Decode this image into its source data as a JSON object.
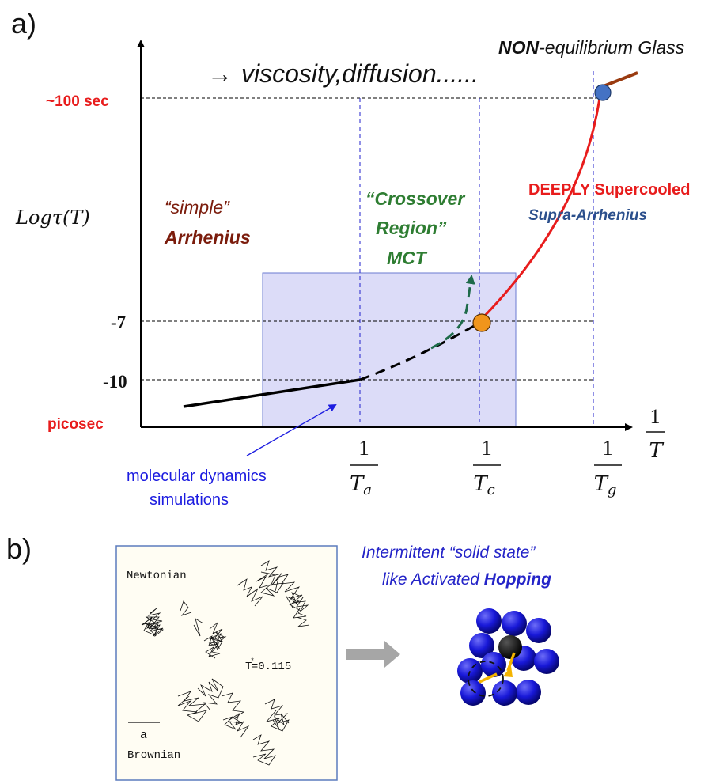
{
  "panel_a": {
    "label": "a)",
    "ylabel": "Logτ(T)",
    "xlabel_num": "1",
    "xlabel_den": "T",
    "ticks": {
      "t100": "~100 sec",
      "t7": "-7",
      "t10": "-10",
      "pico": "picosec"
    },
    "x_ticks": [
      {
        "num": "1",
        "sym": "T",
        "sub": "a"
      },
      {
        "num": "1",
        "sym": "T",
        "sub": "c"
      },
      {
        "num": "1",
        "sym": "T",
        "sub": "g"
      }
    ],
    "viscosity": "viscosity,diffusion......",
    "arrow_glyph": "→",
    "glass_bold": "NON",
    "glass_rest": "-equilibrium Glass",
    "simple_line1": "“simple”",
    "simple_line2": "Arrhenius",
    "crossover_line1": "“Crossover",
    "crossover_line2": "Region”",
    "crossover_line3": "MCT",
    "deep_line1": "DEEPLY Supercooled",
    "deep_line2": "Supra-Arrhenius",
    "md_line1": "molecular dynamics",
    "md_line2": "simulations"
  },
  "panel_b": {
    "label": "b)",
    "newtonian": "Newtonian",
    "brownian": "Brownian",
    "temp_prefix": "T",
    "temp_star": "*",
    "temp_value": "=0.115",
    "scale_label": "a",
    "hop_line1": "Intermittent “solid state”",
    "hop_line2_plain": "like Activated ",
    "hop_line2_bold": "Hopping"
  },
  "colors": {
    "red": "#e81c1c",
    "green": "#2e7d32",
    "brown": "#7b1c0c",
    "blue_text": "#2b4f8c",
    "md_blue": "#1c1ce0",
    "hop_blue": "#2424c8",
    "shade": "#dcdcf8"
  }
}
